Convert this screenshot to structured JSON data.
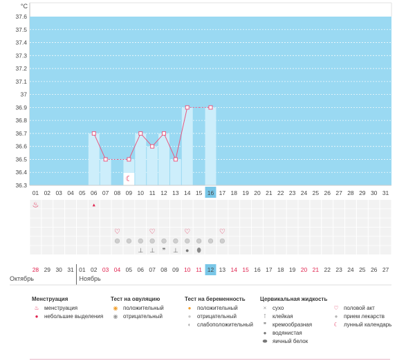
{
  "chart_data": {
    "type": "line",
    "unit": "°C",
    "ylim": [
      36.3,
      37.6
    ],
    "yticks": [
      "36.3",
      "36.4",
      "36.5",
      "36.6",
      "36.7",
      "36.8",
      "36.9",
      "37",
      "37.1",
      "37.2",
      "37.3",
      "37.4",
      "37.5",
      "37.6"
    ],
    "x": [
      "01",
      "02",
      "03",
      "04",
      "05",
      "06",
      "07",
      "08",
      "09",
      "10",
      "11",
      "12",
      "13",
      "14",
      "15",
      "16",
      "17",
      "18",
      "19",
      "20",
      "21",
      "22",
      "23",
      "24",
      "25",
      "26",
      "27",
      "28",
      "29",
      "30",
      "31"
    ],
    "series": [
      {
        "values": [
          null,
          null,
          null,
          null,
          null,
          36.7,
          36.5,
          36.5,
          36.5,
          36.7,
          36.6,
          36.7,
          36.5,
          36.9,
          36.9,
          36.9,
          null,
          null,
          null,
          null,
          null,
          null,
          null,
          null,
          null,
          null,
          null,
          null,
          null,
          null,
          null
        ]
      }
    ],
    "measured": [
      false,
      false,
      false,
      false,
      false,
      true,
      true,
      false,
      true,
      true,
      true,
      true,
      true,
      true,
      false,
      true,
      false,
      false,
      false,
      false,
      false,
      false,
      false,
      false,
      false,
      false,
      false,
      false,
      false,
      false,
      false
    ],
    "today_index": 15,
    "cycle_days": [
      "28",
      "29",
      "30",
      "31",
      "01",
      "02",
      "03",
      "04",
      "05",
      "06",
      "07",
      "08",
      "09",
      "10",
      "11",
      "12",
      "13",
      "14",
      "15",
      "16",
      "17",
      "18",
      "19",
      "20",
      "21",
      "22",
      "23",
      "24",
      "25",
      "26",
      "27"
    ],
    "cycle_day_red": [
      true,
      false,
      false,
      false,
      false,
      false,
      true,
      true,
      false,
      false,
      false,
      false,
      false,
      true,
      true,
      false,
      false,
      true,
      true,
      false,
      false,
      false,
      false,
      true,
      true,
      false,
      false,
      false,
      false,
      false,
      false
    ],
    "month_labels": [
      "Октябрь",
      "Ноябрь"
    ],
    "menstruation": {
      "full": [
        0
      ],
      "light": [
        5
      ]
    },
    "moon_day": 8,
    "markers": {
      "intercourse": [
        7,
        10,
        13,
        16
      ],
      "medication": [
        7,
        8,
        9,
        10,
        11,
        12,
        13,
        14,
        15,
        16
      ],
      "mucus_sticky": [
        9,
        10
      ],
      "mucus_creamy": [
        11
      ],
      "mucus_sticky2": [
        12
      ],
      "mucus_watery": [
        13
      ],
      "mucus_eggwhite": [
        14
      ]
    },
    "colors": {
      "plot_bg": "#9ad9f2",
      "bar": "#cdeefb",
      "line": "#e8577f",
      "today": "#79c7e8",
      "red_text": "#e0224e",
      "grid_row": "#f2f2f2"
    }
  },
  "legend": {
    "menstruation": {
      "title": "Менструация",
      "items": [
        "менструация",
        "небольшие выделения"
      ]
    },
    "ovulation": {
      "title": "Тест на овуляцию",
      "items": [
        "положительный",
        "отрицательный"
      ]
    },
    "pregnancy": {
      "title": "Тест на беременность",
      "items": [
        "положительный",
        "отрицательный",
        "слабоположительный"
      ]
    },
    "mucus": {
      "title": "Цервикальная жидкость",
      "items": [
        "сухо",
        "клейкая",
        "кремообразная",
        "водянистая",
        "яичный белок"
      ]
    },
    "other": {
      "items": [
        "половой акт",
        "прием лекарств",
        "лунный календарь"
      ]
    }
  }
}
